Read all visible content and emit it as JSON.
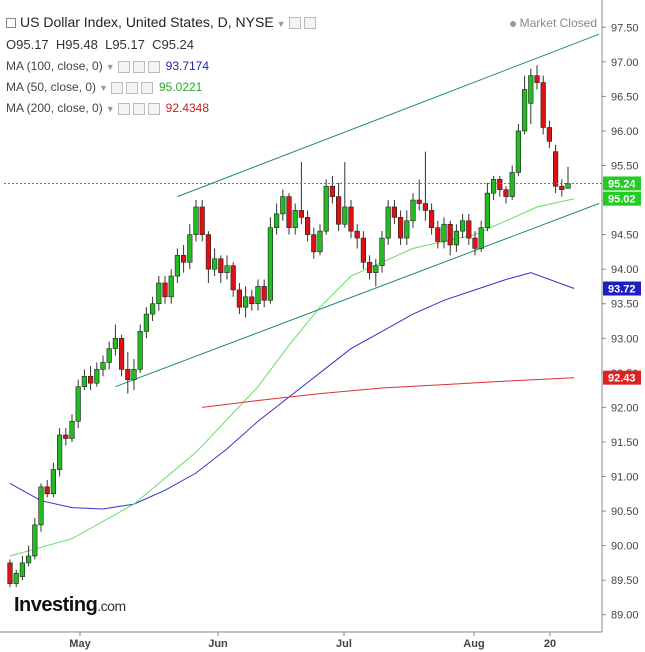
{
  "header": {
    "title": "US Dollar Index, United States, D, NYSE",
    "status": "Market Closed",
    "ohlc": {
      "o_label": "O",
      "o": "95.17",
      "h_label": "H",
      "h": "95.48",
      "l_label": "L",
      "l": "95.17",
      "c_label": "C",
      "c": "95.24"
    },
    "indicators": [
      {
        "label": "MA (100, close, 0)",
        "value": "93.7174",
        "color": "#1f1fbf"
      },
      {
        "label": "MA (50, close, 0)",
        "value": "95.0221",
        "color": "#33cc33"
      },
      {
        "label": "MA (200, close, 0)",
        "value": "92.4348",
        "color": "#cc2222"
      }
    ]
  },
  "logo": {
    "brand": "Investing",
    "domain": ".com"
  },
  "chart_data": {
    "type": "candlestick",
    "y_ticks": [
      "89.00",
      "89.50",
      "90.00",
      "90.50",
      "91.00",
      "91.50",
      "92.00",
      "92.50",
      "93.00",
      "93.50",
      "94.00",
      "94.50",
      "95.00",
      "95.50",
      "96.00",
      "96.50",
      "97.00",
      "97.50"
    ],
    "ylim": [
      88.75,
      97.75
    ],
    "x_ticks": [
      "May",
      "Jun",
      "Jul",
      "Aug",
      "20"
    ],
    "price_badges": [
      {
        "label": "95.24",
        "value": 95.24,
        "color": "#22cc22"
      },
      {
        "label": "95.02",
        "value": 95.02,
        "color": "#22cc22"
      },
      {
        "label": "93.72",
        "value": 93.72,
        "color": "#1f1fbf"
      },
      {
        "label": "92.43",
        "value": 92.43,
        "color": "#dd2222"
      }
    ],
    "current_price": 95.24,
    "candles": [
      {
        "o": 89.75,
        "c": 89.45,
        "h": 89.8,
        "l": 89.4
      },
      {
        "o": 89.45,
        "c": 89.6,
        "h": 89.65,
        "l": 89.4
      },
      {
        "o": 89.55,
        "c": 89.75,
        "h": 89.85,
        "l": 89.5
      },
      {
        "o": 89.75,
        "c": 89.85,
        "h": 90.0,
        "l": 89.7
      },
      {
        "o": 89.85,
        "c": 90.3,
        "h": 90.4,
        "l": 89.8
      },
      {
        "o": 90.3,
        "c": 90.85,
        "h": 90.9,
        "l": 90.2
      },
      {
        "o": 90.85,
        "c": 90.75,
        "h": 90.95,
        "l": 90.7
      },
      {
        "o": 90.75,
        "c": 91.1,
        "h": 91.2,
        "l": 90.7
      },
      {
        "o": 91.1,
        "c": 91.6,
        "h": 91.7,
        "l": 91.0
      },
      {
        "o": 91.6,
        "c": 91.55,
        "h": 91.7,
        "l": 91.45
      },
      {
        "o": 91.55,
        "c": 91.8,
        "h": 91.9,
        "l": 91.5
      },
      {
        "o": 91.8,
        "c": 92.3,
        "h": 92.4,
        "l": 91.7
      },
      {
        "o": 92.3,
        "c": 92.45,
        "h": 92.55,
        "l": 92.25
      },
      {
        "o": 92.45,
        "c": 92.35,
        "h": 92.6,
        "l": 92.25
      },
      {
        "o": 92.35,
        "c": 92.55,
        "h": 92.65,
        "l": 92.3
      },
      {
        "o": 92.55,
        "c": 92.65,
        "h": 92.75,
        "l": 92.45
      },
      {
        "o": 92.65,
        "c": 92.85,
        "h": 92.95,
        "l": 92.55
      },
      {
        "o": 92.85,
        "c": 93.0,
        "h": 93.2,
        "l": 92.75
      },
      {
        "o": 93.0,
        "c": 92.55,
        "h": 93.05,
        "l": 92.45
      },
      {
        "o": 92.55,
        "c": 92.4,
        "h": 92.8,
        "l": 92.2
      },
      {
        "o": 92.4,
        "c": 92.55,
        "h": 92.7,
        "l": 92.25
      },
      {
        "o": 92.55,
        "c": 93.1,
        "h": 93.2,
        "l": 92.5
      },
      {
        "o": 93.1,
        "c": 93.35,
        "h": 93.45,
        "l": 93.0
      },
      {
        "o": 93.35,
        "c": 93.5,
        "h": 93.6,
        "l": 93.25
      },
      {
        "o": 93.5,
        "c": 93.8,
        "h": 93.9,
        "l": 93.4
      },
      {
        "o": 93.8,
        "c": 93.6,
        "h": 93.9,
        "l": 93.5
      },
      {
        "o": 93.6,
        "c": 93.9,
        "h": 94.0,
        "l": 93.5
      },
      {
        "o": 93.9,
        "c": 94.2,
        "h": 94.3,
        "l": 93.8
      },
      {
        "o": 94.2,
        "c": 94.1,
        "h": 94.35,
        "l": 93.95
      },
      {
        "o": 94.1,
        "c": 94.5,
        "h": 94.65,
        "l": 94.0
      },
      {
        "o": 94.5,
        "c": 94.9,
        "h": 95.0,
        "l": 94.4
      },
      {
        "o": 94.9,
        "c": 94.5,
        "h": 95.0,
        "l": 94.4
      },
      {
        "o": 94.5,
        "c": 94.0,
        "h": 94.55,
        "l": 93.8
      },
      {
        "o": 94.0,
        "c": 94.15,
        "h": 94.3,
        "l": 93.9
      },
      {
        "o": 94.15,
        "c": 93.95,
        "h": 94.2,
        "l": 93.8
      },
      {
        "o": 93.95,
        "c": 94.05,
        "h": 94.2,
        "l": 93.85
      },
      {
        "o": 94.05,
        "c": 93.7,
        "h": 94.1,
        "l": 93.6
      },
      {
        "o": 93.7,
        "c": 93.45,
        "h": 93.8,
        "l": 93.35
      },
      {
        "o": 93.45,
        "c": 93.6,
        "h": 93.75,
        "l": 93.3
      },
      {
        "o": 93.6,
        "c": 93.5,
        "h": 93.7,
        "l": 93.4
      },
      {
        "o": 93.5,
        "c": 93.75,
        "h": 93.85,
        "l": 93.4
      },
      {
        "o": 93.75,
        "c": 93.55,
        "h": 93.85,
        "l": 93.45
      },
      {
        "o": 93.55,
        "c": 94.6,
        "h": 94.75,
        "l": 93.5
      },
      {
        "o": 94.6,
        "c": 94.8,
        "h": 94.95,
        "l": 94.5
      },
      {
        "o": 94.8,
        "c": 95.05,
        "h": 95.15,
        "l": 94.7
      },
      {
        "o": 95.05,
        "c": 94.6,
        "h": 95.1,
        "l": 94.5
      },
      {
        "o": 94.6,
        "c": 94.85,
        "h": 94.95,
        "l": 94.5
      },
      {
        "o": 94.85,
        "c": 94.75,
        "h": 95.55,
        "l": 94.65
      },
      {
        "o": 94.75,
        "c": 94.5,
        "h": 94.85,
        "l": 94.4
      },
      {
        "o": 94.5,
        "c": 94.25,
        "h": 94.6,
        "l": 94.15
      },
      {
        "o": 94.25,
        "c": 94.55,
        "h": 94.65,
        "l": 94.2
      },
      {
        "o": 94.55,
        "c": 95.2,
        "h": 95.3,
        "l": 94.5
      },
      {
        "o": 95.2,
        "c": 95.05,
        "h": 95.35,
        "l": 94.95
      },
      {
        "o": 95.05,
        "c": 94.65,
        "h": 95.25,
        "l": 94.55
      },
      {
        "o": 94.65,
        "c": 94.9,
        "h": 95.55,
        "l": 94.6
      },
      {
        "o": 94.9,
        "c": 94.55,
        "h": 95.0,
        "l": 94.45
      },
      {
        "o": 94.55,
        "c": 94.45,
        "h": 94.65,
        "l": 94.3
      },
      {
        "o": 94.45,
        "c": 94.1,
        "h": 94.55,
        "l": 94.0
      },
      {
        "o": 94.1,
        "c": 93.95,
        "h": 94.2,
        "l": 93.85
      },
      {
        "o": 93.95,
        "c": 94.05,
        "h": 94.15,
        "l": 93.75
      },
      {
        "o": 94.05,
        "c": 94.45,
        "h": 94.55,
        "l": 93.95
      },
      {
        "o": 94.45,
        "c": 94.9,
        "h": 95.0,
        "l": 94.35
      },
      {
        "o": 94.9,
        "c": 94.75,
        "h": 95.0,
        "l": 94.65
      },
      {
        "o": 94.75,
        "c": 94.45,
        "h": 94.85,
        "l": 94.35
      },
      {
        "o": 94.45,
        "c": 94.7,
        "h": 94.85,
        "l": 94.35
      },
      {
        "o": 94.7,
        "c": 95.0,
        "h": 95.1,
        "l": 94.6
      },
      {
        "o": 95.0,
        "c": 94.95,
        "h": 95.3,
        "l": 94.85
      },
      {
        "o": 94.95,
        "c": 94.85,
        "h": 95.7,
        "l": 94.7
      },
      {
        "o": 94.85,
        "c": 94.6,
        "h": 94.95,
        "l": 94.5
      },
      {
        "o": 94.6,
        "c": 94.4,
        "h": 94.7,
        "l": 94.3
      },
      {
        "o": 94.4,
        "c": 94.65,
        "h": 94.75,
        "l": 94.3
      },
      {
        "o": 94.65,
        "c": 94.35,
        "h": 94.7,
        "l": 94.2
      },
      {
        "o": 94.35,
        "c": 94.55,
        "h": 94.65,
        "l": 94.25
      },
      {
        "o": 94.55,
        "c": 94.7,
        "h": 94.8,
        "l": 94.45
      },
      {
        "o": 94.7,
        "c": 94.45,
        "h": 94.8,
        "l": 94.35
      },
      {
        "o": 94.45,
        "c": 94.3,
        "h": 94.55,
        "l": 94.2
      },
      {
        "o": 94.3,
        "c": 94.6,
        "h": 94.7,
        "l": 94.25
      },
      {
        "o": 94.6,
        "c": 95.1,
        "h": 95.25,
        "l": 94.55
      },
      {
        "o": 95.1,
        "c": 95.3,
        "h": 95.35,
        "l": 95.0
      },
      {
        "o": 95.3,
        "c": 95.15,
        "h": 95.35,
        "l": 95.05
      },
      {
        "o": 95.15,
        "c": 95.05,
        "h": 95.2,
        "l": 94.95
      },
      {
        "o": 95.05,
        "c": 95.4,
        "h": 95.5,
        "l": 95.0
      },
      {
        "o": 95.4,
        "c": 96.0,
        "h": 96.1,
        "l": 95.35
      },
      {
        "o": 96.0,
        "c": 96.6,
        "h": 96.8,
        "l": 95.95
      },
      {
        "o": 96.4,
        "c": 96.8,
        "h": 96.9,
        "l": 96.1
      },
      {
        "o": 96.8,
        "c": 96.7,
        "h": 96.95,
        "l": 96.6
      },
      {
        "o": 96.7,
        "c": 96.05,
        "h": 96.8,
        "l": 95.95
      },
      {
        "o": 96.05,
        "c": 95.85,
        "h": 96.15,
        "l": 95.75
      },
      {
        "o": 95.7,
        "c": 95.2,
        "h": 95.8,
        "l": 95.1
      },
      {
        "o": 95.2,
        "c": 95.15,
        "h": 95.3,
        "l": 95.05
      },
      {
        "o": 95.17,
        "c": 95.24,
        "h": 95.48,
        "l": 95.17
      }
    ],
    "ma50": [
      [
        0,
        89.85
      ],
      [
        10,
        90.1
      ],
      [
        20,
        90.6
      ],
      [
        30,
        91.35
      ],
      [
        40,
        92.3
      ],
      [
        45,
        92.9
      ],
      [
        50,
        93.45
      ],
      [
        55,
        93.9
      ],
      [
        60,
        94.1
      ],
      [
        65,
        94.3
      ],
      [
        70,
        94.4
      ],
      [
        75,
        94.5
      ],
      [
        80,
        94.7
      ],
      [
        85,
        94.9
      ],
      [
        91,
        95.02
      ]
    ],
    "ma100": [
      [
        0,
        90.9
      ],
      [
        5,
        90.65
      ],
      [
        10,
        90.55
      ],
      [
        15,
        90.53
      ],
      [
        20,
        90.6
      ],
      [
        25,
        90.8
      ],
      [
        30,
        91.05
      ],
      [
        35,
        91.4
      ],
      [
        40,
        91.8
      ],
      [
        45,
        92.15
      ],
      [
        50,
        92.5
      ],
      [
        55,
        92.85
      ],
      [
        60,
        93.1
      ],
      [
        65,
        93.35
      ],
      [
        70,
        93.55
      ],
      [
        75,
        93.7
      ],
      [
        80,
        93.85
      ],
      [
        84,
        93.95
      ],
      [
        91,
        93.72
      ]
    ],
    "ma200": [
      [
        31,
        92.0
      ],
      [
        40,
        92.1
      ],
      [
        50,
        92.2
      ],
      [
        60,
        92.28
      ],
      [
        70,
        92.33
      ],
      [
        80,
        92.38
      ],
      [
        91,
        92.43
      ]
    ],
    "trendlines": [
      {
        "from": [
          17,
          92.3
        ],
        "to": [
          95,
          94.95
        ]
      },
      {
        "from": [
          27,
          95.05
        ],
        "to": [
          95,
          97.4
        ]
      }
    ]
  }
}
